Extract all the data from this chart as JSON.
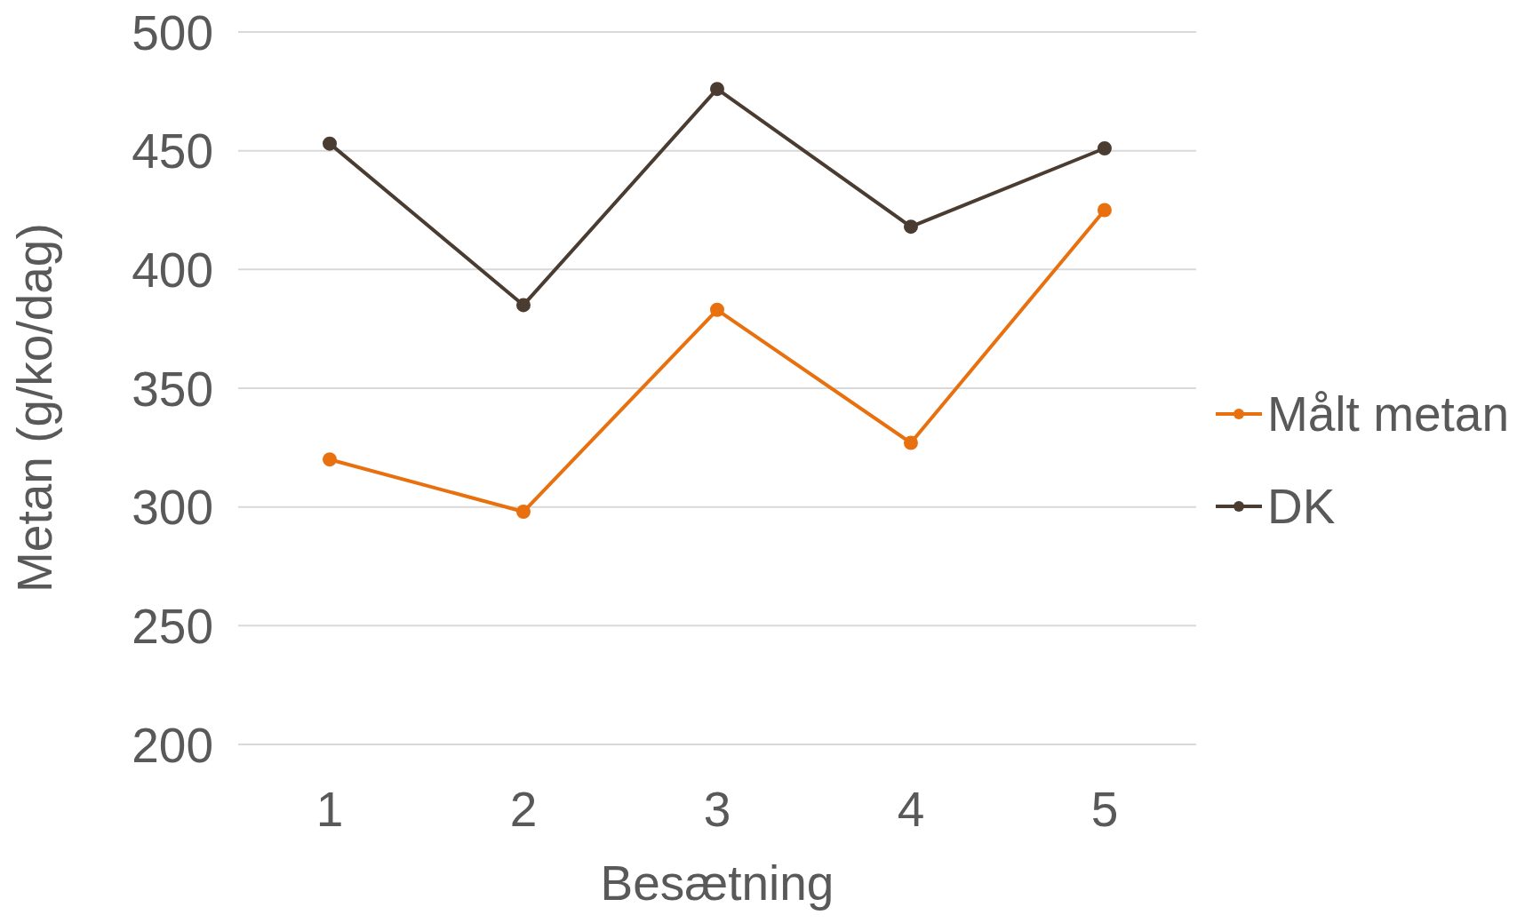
{
  "chart_data": {
    "type": "line",
    "xlabel": "Besætning",
    "ylabel": "Metan (g/ko/dag)",
    "categories": [
      "1",
      "2",
      "3",
      "4",
      "5"
    ],
    "series": [
      {
        "name": "Målt metan",
        "color": "#e8700f",
        "values": [
          320,
          298,
          383,
          327,
          425
        ]
      },
      {
        "name": "DK",
        "color": "#4a3c31",
        "values": [
          453,
          385,
          476,
          418,
          451
        ]
      }
    ],
    "ylim": [
      200,
      500
    ],
    "yticks": [
      200,
      250,
      300,
      350,
      400,
      450,
      500
    ],
    "grid": "y",
    "legend": "right",
    "marker": "circle",
    "line_style": "solid"
  }
}
